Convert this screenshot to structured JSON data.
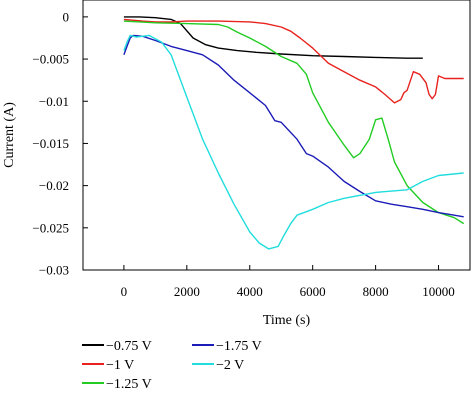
{
  "chart_data": {
    "type": "line",
    "title": "",
    "xlabel": "Time (s)",
    "ylabel": "Current (A)",
    "xlim": [
      -1300,
      11000
    ],
    "ylim": [
      -0.03,
      0.002
    ],
    "x_ticks": [
      0,
      2000,
      4000,
      6000,
      8000,
      10000
    ],
    "x_tick_labels": [
      "0",
      "2000",
      "4000",
      "6000",
      "8000",
      "10000"
    ],
    "y_ticks": [
      0,
      -0.005,
      -0.01,
      -0.015,
      -0.02,
      -0.025,
      -0.03
    ],
    "y_tick_labels": [
      "0",
      "−0.005",
      "−0.01",
      "−0.015",
      "−0.02",
      "−0.025",
      "−0.03"
    ],
    "grid": false,
    "legend_position": "bottom-left",
    "series": [
      {
        "name": "−0.75 V",
        "color": "#000000",
        "x": [
          0,
          500,
          1000,
          1500,
          1800,
          2200,
          2600,
          3000,
          3600,
          4200,
          5000,
          6000,
          7000,
          8000,
          9000,
          9500
        ],
        "y": [
          0.0,
          0.0,
          -0.0001,
          -0.0003,
          -0.0008,
          -0.0025,
          -0.0033,
          -0.0037,
          -0.004,
          -0.0042,
          -0.0044,
          -0.0046,
          -0.0047,
          -0.0048,
          -0.0049,
          -0.0049
        ]
      },
      {
        "name": "−1 V",
        "color": "#e8231f",
        "x": [
          0,
          600,
          1000,
          1500,
          2000,
          3000,
          4000,
          4500,
          5000,
          5300,
          5600,
          6000,
          6500,
          7000,
          7500,
          8000,
          8300,
          8600,
          8800,
          8900,
          9000,
          9200,
          9400,
          9600,
          9700,
          9800,
          9900,
          10000,
          10200,
          10500,
          10800
        ],
        "y": [
          -0.0003,
          -0.0005,
          -0.0006,
          -0.0006,
          -0.0005,
          -0.0005,
          -0.0006,
          -0.0008,
          -0.0012,
          -0.0017,
          -0.0025,
          -0.0037,
          -0.0055,
          -0.0065,
          -0.0075,
          -0.0083,
          -0.0092,
          -0.0102,
          -0.0098,
          -0.009,
          -0.0087,
          -0.0065,
          -0.0068,
          -0.0078,
          -0.0092,
          -0.0097,
          -0.0092,
          -0.007,
          -0.0073,
          -0.0073,
          -0.0073
        ]
      },
      {
        "name": "−1.25 V",
        "color": "#22cc22",
        "x": [
          0,
          500,
          1000,
          2000,
          3000,
          3300,
          3600,
          4000,
          4500,
          5000,
          5500,
          5800,
          6000,
          6500,
          7000,
          7300,
          7500,
          7800,
          8000,
          8200,
          8400,
          8600,
          9000,
          9500,
          10000,
          10500,
          10800
        ],
        "y": [
          -0.0005,
          -0.0006,
          -0.0007,
          -0.0008,
          -0.0009,
          -0.0012,
          -0.0018,
          -0.0025,
          -0.0035,
          -0.0047,
          -0.0055,
          -0.0068,
          -0.009,
          -0.0125,
          -0.0152,
          -0.0167,
          -0.0162,
          -0.0145,
          -0.0122,
          -0.012,
          -0.0145,
          -0.0172,
          -0.02,
          -0.022,
          -0.0232,
          -0.0238,
          -0.0245
        ]
      },
      {
        "name": "−1.75 V",
        "color": "#1c1cb8",
        "x": [
          0,
          100,
          200,
          300,
          600,
          1000,
          1500,
          2000,
          2500,
          3000,
          3500,
          4000,
          4500,
          4800,
          5000,
          5500,
          5800,
          6000,
          6500,
          7000,
          7500,
          8000,
          8500,
          9000,
          9500,
          10000,
          10500,
          10800
        ],
        "y": [
          -0.0045,
          -0.0035,
          -0.0025,
          -0.0022,
          -0.0023,
          -0.0028,
          -0.0035,
          -0.004,
          -0.0045,
          -0.0057,
          -0.0075,
          -0.009,
          -0.0105,
          -0.0123,
          -0.0125,
          -0.0145,
          -0.0162,
          -0.0165,
          -0.0178,
          -0.0195,
          -0.0207,
          -0.0218,
          -0.0222,
          -0.0225,
          -0.0228,
          -0.0232,
          -0.0235,
          -0.0237
        ]
      },
      {
        "name": "−2 V",
        "color": "#22dddd",
        "x": [
          0,
          100,
          200,
          400,
          800,
          1200,
          1500,
          2000,
          2500,
          3000,
          3500,
          4000,
          4300,
          4600,
          4900,
          5100,
          5300,
          5500,
          6000,
          6500,
          7000,
          8000,
          9000,
          9500,
          10000,
          10800
        ],
        "y": [
          -0.004,
          -0.003,
          -0.0022,
          -0.0024,
          -0.0022,
          -0.003,
          -0.0045,
          -0.0095,
          -0.0145,
          -0.0185,
          -0.0222,
          -0.0255,
          -0.0268,
          -0.0275,
          -0.0272,
          -0.0258,
          -0.0245,
          -0.0235,
          -0.0228,
          -0.022,
          -0.0215,
          -0.0208,
          -0.0205,
          -0.0195,
          -0.0188,
          -0.0185
        ]
      }
    ]
  }
}
